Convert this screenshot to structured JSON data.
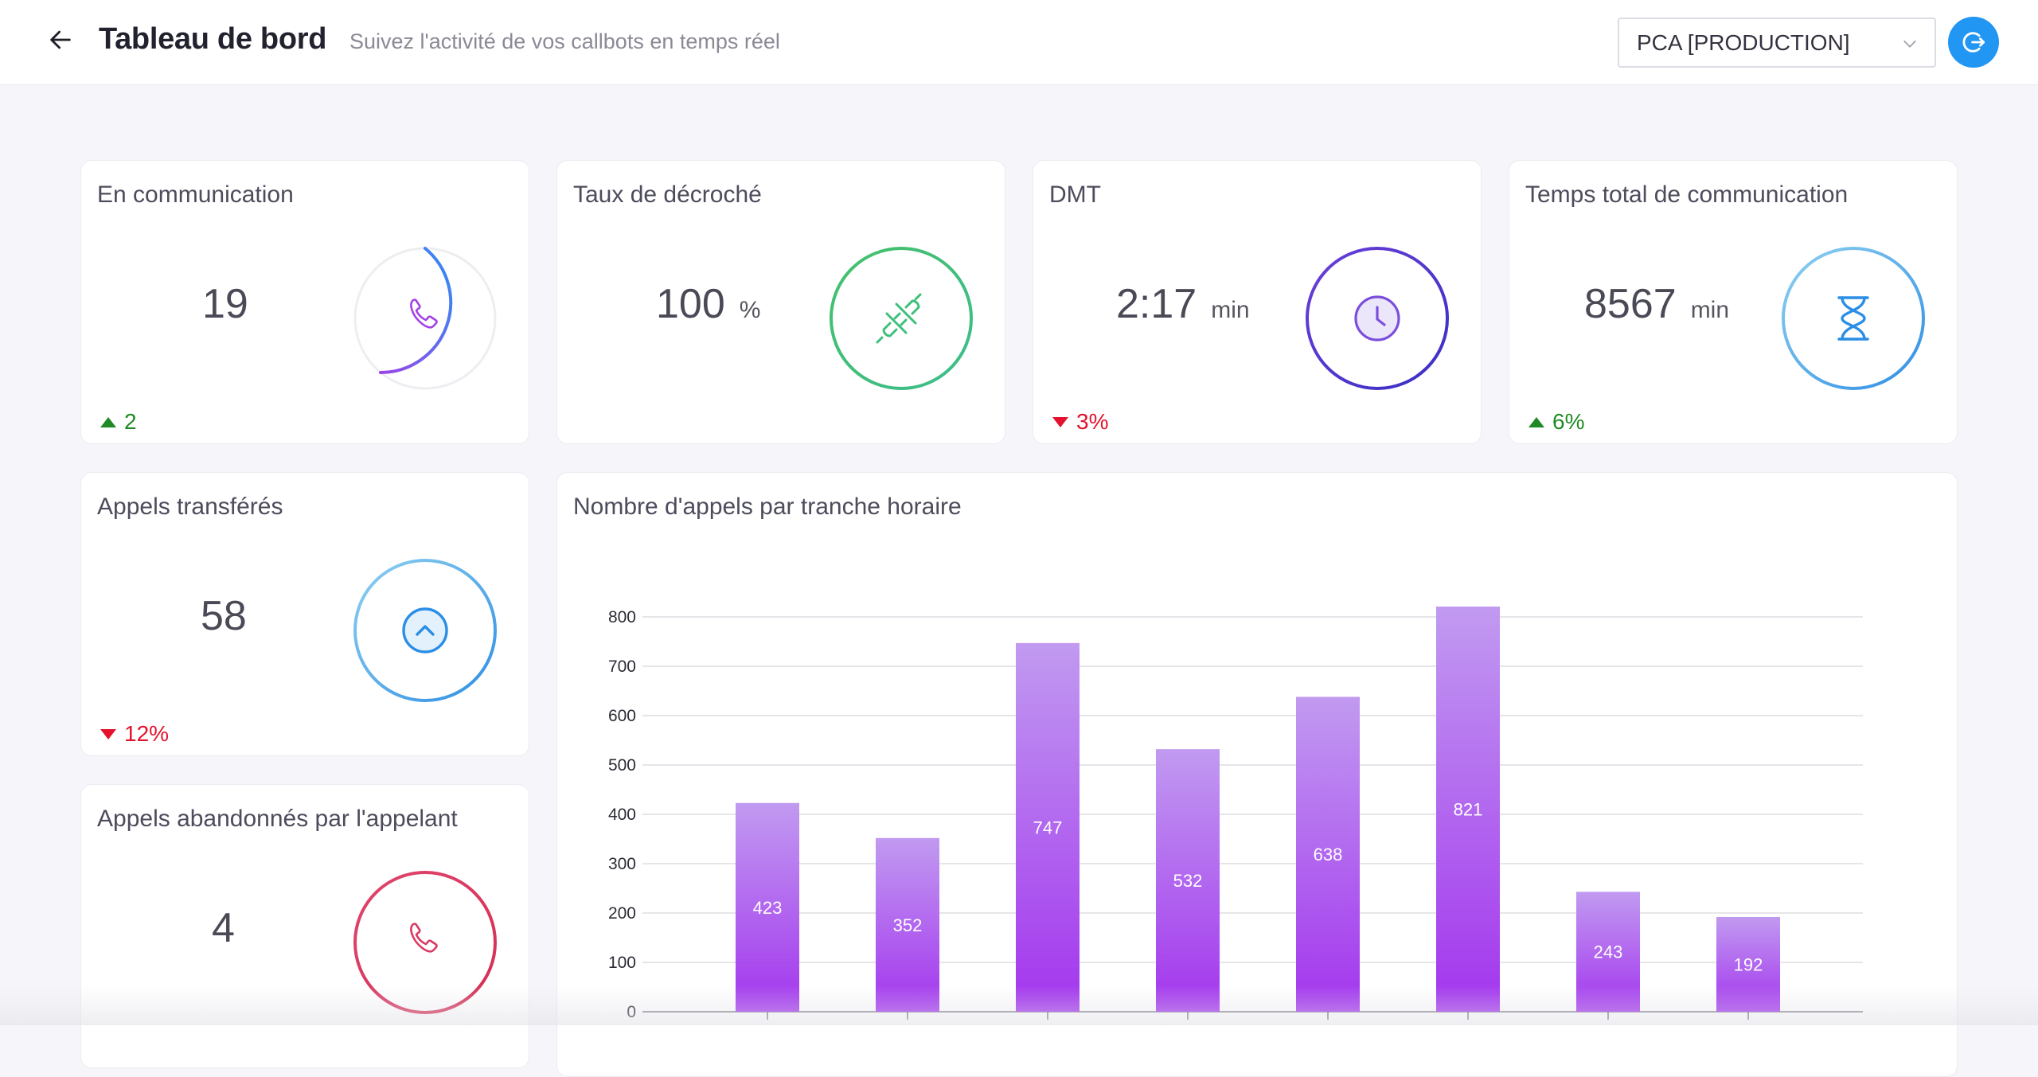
{
  "header": {
    "title": "Tableau de bord",
    "subtitle": "Suivez l'activité de vos callbots en temps réel",
    "environment": "PCA [PRODUCTION]"
  },
  "kpis": [
    {
      "title": "En communication",
      "value": "19",
      "unit": "",
      "delta": "2",
      "trend": "up",
      "icon": "phone-icon",
      "ring_progress": 0.55
    },
    {
      "title": "Taux de décroché",
      "value": "100",
      "unit": "%",
      "delta": "",
      "trend": "",
      "icon": "plug-icon"
    },
    {
      "title": "DMT",
      "value": "2:17",
      "unit": "min",
      "delta": "3%",
      "trend": "down",
      "icon": "clock-icon"
    },
    {
      "title": "Temps total de communication",
      "value": "8567",
      "unit": "min",
      "delta": "6%",
      "trend": "up",
      "icon": "hourglass-icon"
    },
    {
      "title": "Appels transférés",
      "value": "58",
      "unit": "",
      "delta": "12%",
      "trend": "down",
      "icon": "transfer-up-icon"
    },
    {
      "title": "Appels abandonnés par l'appelant",
      "value": "4",
      "unit": "",
      "delta": "",
      "trend": "",
      "icon": "hangup-phone-icon"
    }
  ],
  "colors": {
    "accent": "#2196f3",
    "up": "#1f8a23",
    "down": "#e3122d",
    "bar_top": "#c19af0",
    "bar_bottom": "#a335ee"
  },
  "chart_data": {
    "type": "bar",
    "title": "Nombre d'appels par tranche horaire",
    "categories": [
      "",
      "",
      "",
      "",
      "",
      "",
      "",
      ""
    ],
    "values": [
      423,
      352,
      747,
      532,
      638,
      821,
      243,
      192
    ],
    "ylim": [
      0,
      800
    ],
    "yticks": [
      0,
      100,
      200,
      300,
      400,
      500,
      600,
      700,
      800
    ],
    "grid": true,
    "data_labels": true
  }
}
